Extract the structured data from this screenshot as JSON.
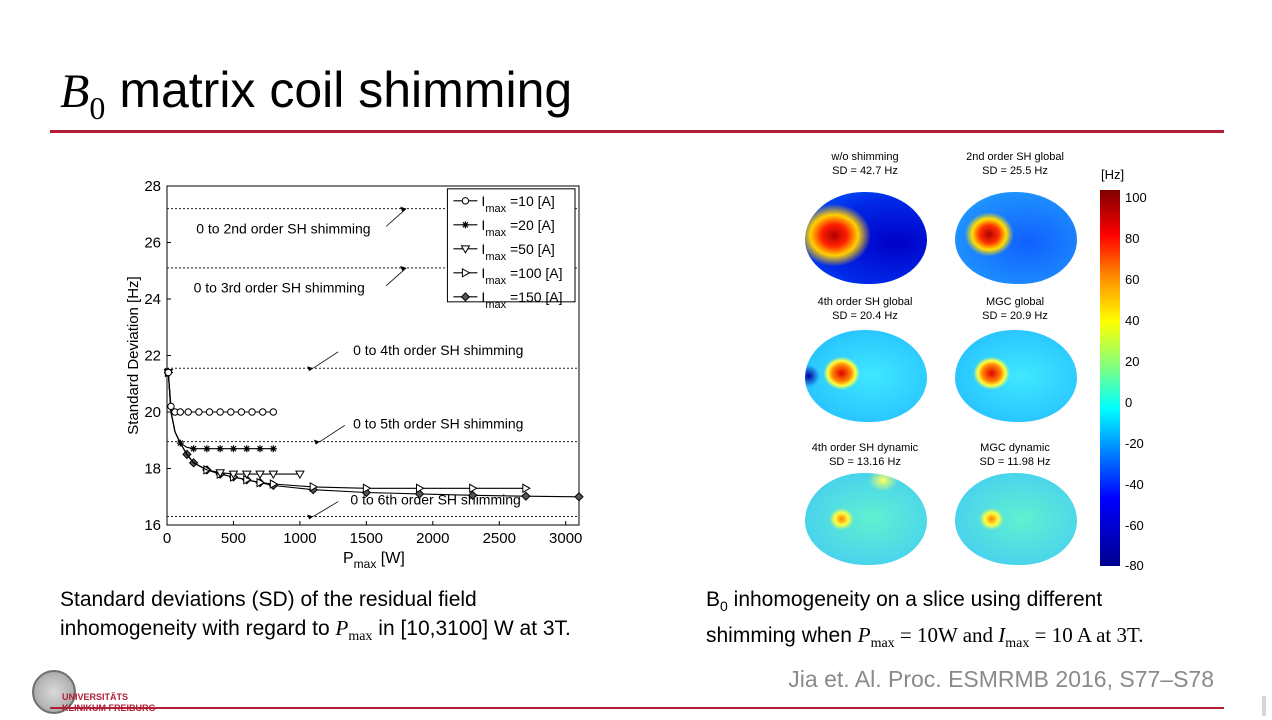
{
  "slide": {
    "title_symbol": "B",
    "title_subscript": "0",
    "title_text": "matrix coil shimming",
    "reference": "Jia et. Al. Proc. ESMRMB 2016, S77–S78",
    "accent_color": "#b01f35"
  },
  "caption_left": {
    "line1": "Standard deviations (SD) of the residual field",
    "line2_pre": "inhomogeneity with regard to ",
    "var": "P",
    "var_sub": "max",
    "line2_post": " in [10,3100] W at 3T."
  },
  "caption_right": {
    "line1_sym": "B",
    "line1_sub": "0",
    "line1_text": " inhomogeneity on a slice using different",
    "line2_pre": "shimming when ",
    "p_var": "P",
    "p_sub": "max",
    "p_val": " = 10W and ",
    "i_var": "I",
    "i_sub": "max",
    "i_val": " = 10 A at 3T."
  },
  "logo": {
    "line1": "UNIVERSITÄTS",
    "line2": "KLINIKUM FREIBURG"
  },
  "field_maps": {
    "colorbar_unit": "[Hz]",
    "colorbar_ticks": [
      "100",
      "80",
      "60",
      "40",
      "20",
      "0",
      "-20",
      "-40",
      "-60",
      "-80"
    ],
    "colorbar_range": [
      -80,
      100
    ],
    "maps": [
      {
        "label": "w/o shimming",
        "sd": "SD = 42.7 Hz"
      },
      {
        "label": "2nd order SH global",
        "sd": "SD = 25.5 Hz"
      },
      {
        "label": "4th order SH global",
        "sd": "SD = 20.4 Hz"
      },
      {
        "label": "MGC global",
        "sd": "SD = 20.9 Hz"
      },
      {
        "label": "4th order SH dynamic",
        "sd": "SD = 13.16 Hz"
      },
      {
        "label": "MGC dynamic",
        "sd": "SD = 11.98 Hz"
      }
    ]
  },
  "chart_data": {
    "type": "line",
    "xlabel": "P",
    "xlabel_sub": "max",
    "xlabel_unit": " [W]",
    "ylabel": "Standard Deviation [Hz]",
    "xlim": [
      0,
      3100
    ],
    "ylim": [
      16,
      28
    ],
    "xticks": [
      0,
      500,
      1000,
      1500,
      2000,
      2500,
      3000
    ],
    "yticks": [
      16,
      18,
      20,
      22,
      24,
      26,
      28
    ],
    "grid": false,
    "legend_position": "top-right",
    "series": [
      {
        "name": "I",
        "name_sub": "max",
        "name_suffix": " =10 [A]",
        "marker": "circle",
        "x": [
          10,
          30,
          60,
          100,
          160,
          240,
          320,
          400,
          480,
          560,
          640,
          720,
          800
        ],
        "y": [
          21.4,
          20.2,
          20.0,
          20.0,
          20.0,
          20.0,
          20.0,
          20.0,
          20.0,
          20.0,
          20.0,
          20.0,
          20.0
        ]
      },
      {
        "name": "I",
        "name_sub": "max",
        "name_suffix": " =20 [A]",
        "marker": "star",
        "x": [
          10,
          30,
          60,
          100,
          150,
          200,
          300,
          400,
          500,
          600,
          700,
          800
        ],
        "y": [
          21.4,
          20.0,
          19.3,
          18.9,
          18.75,
          18.7,
          18.7,
          18.7,
          18.7,
          18.7,
          18.7,
          18.7
        ],
        "marker_x": [
          10,
          100,
          200,
          300,
          400,
          500,
          600,
          700,
          800
        ]
      },
      {
        "name": "I",
        "name_sub": "max",
        "name_suffix": " =50 [A]",
        "marker": "triangle-down",
        "x": [
          10,
          30,
          60,
          100,
          150,
          200,
          300,
          400,
          500,
          600,
          700,
          800,
          1000
        ],
        "y": [
          21.4,
          20.0,
          19.3,
          18.9,
          18.5,
          18.2,
          17.95,
          17.85,
          17.8,
          17.8,
          17.8,
          17.8,
          17.8
        ],
        "marker_x": [
          10,
          400,
          500,
          600,
          700,
          800,
          1000
        ]
      },
      {
        "name": "I",
        "name_sub": "max",
        "name_suffix": " =100 [A]",
        "marker": "triangle-right",
        "x": [
          10,
          30,
          60,
          100,
          150,
          200,
          300,
          400,
          500,
          600,
          700,
          800,
          1100,
          1500,
          1900,
          2300,
          2700
        ],
        "y": [
          21.4,
          20.0,
          19.3,
          18.9,
          18.5,
          18.2,
          17.95,
          17.8,
          17.7,
          17.6,
          17.5,
          17.45,
          17.35,
          17.3,
          17.3,
          17.3,
          17.3
        ],
        "marker_x": [
          10,
          300,
          400,
          500,
          600,
          700,
          800,
          1100,
          1500,
          1900,
          2300,
          2700
        ]
      },
      {
        "name": "I",
        "name_sub": "max",
        "name_suffix": " =150 [A]",
        "marker": "diamond",
        "x": [
          10,
          30,
          60,
          100,
          150,
          200,
          300,
          400,
          500,
          600,
          700,
          800,
          1100,
          1500,
          1900,
          2300,
          2700,
          3100
        ],
        "y": [
          21.4,
          20.0,
          19.3,
          18.9,
          18.5,
          18.2,
          17.95,
          17.8,
          17.7,
          17.6,
          17.5,
          17.4,
          17.25,
          17.15,
          17.1,
          17.05,
          17.02,
          17.0
        ],
        "marker_x": [
          10,
          150,
          200,
          300,
          400,
          500,
          600,
          700,
          800,
          1100,
          1500,
          1900,
          2300,
          2700,
          3100
        ]
      }
    ],
    "reference_lines": [
      {
        "y": 27.2,
        "label": "0 to 2nd order SH shimming",
        "label_x": 220,
        "label_y": 26.5,
        "arrow_x": 1800
      },
      {
        "y": 25.1,
        "label": "0 to 3rd order SH shimming",
        "label_x": 200,
        "label_y": 24.4,
        "arrow_x": 1800
      },
      {
        "y": 21.55,
        "label": "0 to 4th order SH shimming",
        "label_x": 1400,
        "label_y": 22.2,
        "arrow_x": 1100
      },
      {
        "y": 18.95,
        "label": "0 to 5th order SH shimming",
        "label_x": 1400,
        "label_y": 19.6,
        "arrow_x": 1150
      },
      {
        "y": 16.3,
        "label": "0 to 6th order SH shimming",
        "label_x": 1380,
        "label_y": 16.9,
        "arrow_x": 1100
      }
    ]
  }
}
